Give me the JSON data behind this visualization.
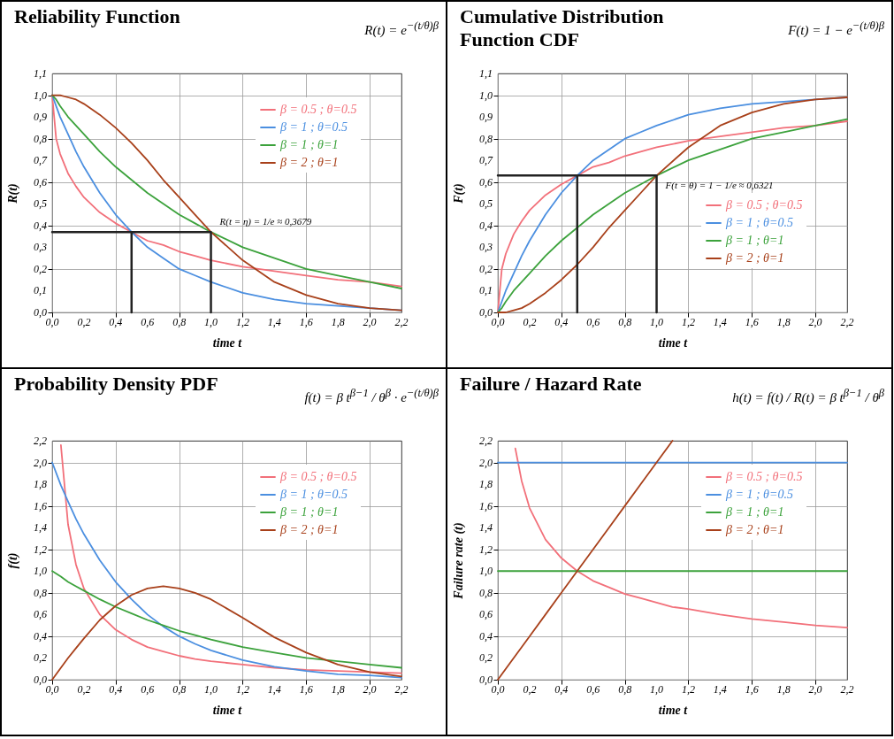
{
  "chart_data": [
    {
      "type": "line",
      "title": "Reliability Function",
      "xlabel": "time t",
      "ylabel": "R(t)",
      "legend": "top right",
      "grid": true,
      "annotations": [
        "R(t) = e$^{−(t/θ)}$$^{β}$",
        {
          "text": "R(t = η) = 1/e ≈ 0,3679",
          "x": 1,
          "y": 0.37
        }
      ],
      "x": [
        0,
        0.025,
        0.05,
        0.1,
        0.15,
        0.2,
        0.3,
        0.4,
        0.5,
        0.6,
        0.7,
        0.8,
        0.9,
        1,
        1.2,
        1.4,
        1.6,
        1.8,
        2,
        2.2
      ],
      "xlim": [
        0,
        2.2
      ],
      "xticks": [
        {
          "value": 0,
          "label": "0,0"
        },
        {
          "value": 0.2,
          "label": "0,2"
        },
        {
          "value": 0.4,
          "label": "0,4"
        },
        {
          "value": 0.6,
          "label": "0,6"
        },
        {
          "value": 0.8,
          "label": "0,8"
        },
        {
          "value": 1,
          "label": "1,0"
        },
        {
          "value": 1.2,
          "label": "1,2"
        },
        {
          "value": 1.4,
          "label": "1,4"
        },
        {
          "value": 1.6,
          "label": "1,6"
        },
        {
          "value": 1.8,
          "label": "1,8"
        },
        {
          "value": 2,
          "label": "2,0"
        },
        {
          "value": 2.2,
          "label": "2,2"
        }
      ],
      "ylim": [
        0,
        1.1
      ],
      "yticks": [
        {
          "value": 0,
          "label": "0,0"
        },
        {
          "value": 0.1,
          "label": "0,1"
        },
        {
          "value": 0.2,
          "label": "0,2"
        },
        {
          "value": 0.3,
          "label": "0,3"
        },
        {
          "value": 0.4,
          "label": "0,4"
        },
        {
          "value": 0.5,
          "label": "0,5"
        },
        {
          "value": 0.6,
          "label": "0,6"
        },
        {
          "value": 0.7,
          "label": "0,7"
        },
        {
          "value": 0.8,
          "label": "0,8"
        },
        {
          "value": 0.9,
          "label": "0,9"
        },
        {
          "value": 1,
          "label": "1,0"
        },
        {
          "value": 1.1,
          "label": "1,1"
        }
      ],
      "series": [
        {
          "name": "β = 0.5 ; θ=0.5",
          "color": "#f2707a",
          "values": [
            1,
            0.8,
            0.73,
            0.64,
            0.58,
            0.53,
            0.46,
            0.41,
            0.37,
            0.33,
            0.31,
            0.28,
            0.26,
            0.24,
            0.21,
            0.19,
            0.17,
            0.15,
            0.14,
            0.12
          ]
        },
        {
          "name": "β = 1 ; θ=0.5",
          "color": "#4b8fe0",
          "values": [
            1,
            0.95,
            0.9,
            0.82,
            0.74,
            0.67,
            0.55,
            0.45,
            0.37,
            0.3,
            0.25,
            0.2,
            0.17,
            0.14,
            0.09,
            0.06,
            0.04,
            0.03,
            0.02,
            0.01
          ]
        },
        {
          "name": "β = 1 ; θ=1",
          "color": "#3ca23c",
          "values": [
            1,
            0.98,
            0.95,
            0.9,
            0.86,
            0.82,
            0.74,
            0.67,
            0.61,
            0.55,
            0.5,
            0.45,
            0.41,
            0.37,
            0.3,
            0.25,
            0.2,
            0.17,
            0.14,
            0.11
          ]
        },
        {
          "name": "β = 2 ; θ=1",
          "color": "#a8401a",
          "values": [
            1,
            1.0,
            1.0,
            0.99,
            0.98,
            0.96,
            0.91,
            0.85,
            0.78,
            0.7,
            0.61,
            0.53,
            0.45,
            0.37,
            0.24,
            0.14,
            0.08,
            0.04,
            0.02,
            0.01
          ]
        },
        {
          "color": "#222222",
          "x": [
            0,
            1,
            1
          ],
          "values": [
            0.37,
            0.37,
            0
          ]
        },
        {
          "color": "#222222",
          "x": [
            0.5,
            0.5
          ],
          "values": [
            0,
            0.37
          ]
        }
      ]
    },
    {
      "type": "line",
      "title": "Cumulative Distribution Function CDF",
      "xlabel": "time t",
      "ylabel": "F(t)",
      "legend": "right",
      "grid": true,
      "annotations": [
        "F(t) = 1 − e$^{−(t/θ)}$$^{β}$",
        {
          "text": "F(t = θ) = 1 − 1/e ≈ 0,6321",
          "x": 1,
          "y": 0.63
        }
      ],
      "x": [
        0,
        0.025,
        0.05,
        0.1,
        0.15,
        0.2,
        0.3,
        0.4,
        0.5,
        0.6,
        0.7,
        0.8,
        0.9,
        1,
        1.2,
        1.4,
        1.6,
        1.8,
        2,
        2.2
      ],
      "xlim": [
        0,
        2.2
      ],
      "xticks": [
        {
          "value": 0,
          "label": "0,0"
        },
        {
          "value": 0.2,
          "label": "0,2"
        },
        {
          "value": 0.4,
          "label": "0,4"
        },
        {
          "value": 0.6,
          "label": "0,6"
        },
        {
          "value": 0.8,
          "label": "0,8"
        },
        {
          "value": 1,
          "label": "1,0"
        },
        {
          "value": 1.2,
          "label": "1,2"
        },
        {
          "value": 1.4,
          "label": "1,4"
        },
        {
          "value": 1.6,
          "label": "1,6"
        },
        {
          "value": 1.8,
          "label": "1,8"
        },
        {
          "value": 2,
          "label": "2,0"
        },
        {
          "value": 2.2,
          "label": "2,2"
        }
      ],
      "ylim": [
        0,
        1.1
      ],
      "yticks": [
        {
          "value": 0,
          "label": "0,0"
        },
        {
          "value": 0.1,
          "label": "0,1"
        },
        {
          "value": 0.2,
          "label": "0,2"
        },
        {
          "value": 0.3,
          "label": "0,3"
        },
        {
          "value": 0.4,
          "label": "0,4"
        },
        {
          "value": 0.5,
          "label": "0,5"
        },
        {
          "value": 0.6,
          "label": "0,6"
        },
        {
          "value": 0.7,
          "label": "0,7"
        },
        {
          "value": 0.8,
          "label": "0,8"
        },
        {
          "value": 0.9,
          "label": "0,9"
        },
        {
          "value": 1,
          "label": "1,0"
        },
        {
          "value": 1.1,
          "label": "1,1"
        }
      ],
      "series": [
        {
          "name": "β = 0.5 ; θ=0.5",
          "color": "#f2707a",
          "values": [
            0,
            0.2,
            0.27,
            0.36,
            0.42,
            0.47,
            0.54,
            0.59,
            0.63,
            0.67,
            0.69,
            0.72,
            0.74,
            0.76,
            0.79,
            0.81,
            0.83,
            0.85,
            0.86,
            0.88
          ]
        },
        {
          "name": "β = 1 ; θ=0.5",
          "color": "#4b8fe0",
          "values": [
            0,
            0.05,
            0.1,
            0.18,
            0.26,
            0.33,
            0.45,
            0.55,
            0.63,
            0.7,
            0.75,
            0.8,
            0.83,
            0.86,
            0.91,
            0.94,
            0.96,
            0.97,
            0.98,
            0.99
          ]
        },
        {
          "name": "β = 1 ; θ=1",
          "color": "#3ca23c",
          "values": [
            0,
            0.02,
            0.05,
            0.1,
            0.14,
            0.18,
            0.26,
            0.33,
            0.39,
            0.45,
            0.5,
            0.55,
            0.59,
            0.63,
            0.7,
            0.75,
            0.8,
            0.83,
            0.86,
            0.89
          ]
        },
        {
          "name": "β = 2 ; θ=1",
          "color": "#a8401a",
          "values": [
            0,
            0,
            0,
            0.01,
            0.02,
            0.04,
            0.09,
            0.15,
            0.22,
            0.3,
            0.39,
            0.47,
            0.55,
            0.63,
            0.76,
            0.86,
            0.92,
            0.96,
            0.98,
            0.99
          ]
        },
        {
          "color": "#222222",
          "x": [
            0,
            1,
            1
          ],
          "values": [
            0.63,
            0.63,
            0
          ]
        },
        {
          "color": "#222222",
          "x": [
            0.5,
            0.5
          ],
          "values": [
            0,
            0.63
          ]
        }
      ]
    },
    {
      "type": "line",
      "title": "Probability Density PDF",
      "xlabel": "time t",
      "ylabel": "f(t)",
      "legend": "top right",
      "grid": true,
      "annotations": [
        "f(t) = β t$^{β−1}$ / θ$^{β}$ · e$^{−(t/θ)}$$^{β}$"
      ],
      "x": [
        0,
        0.055,
        0.1,
        0.15,
        0.2,
        0.3,
        0.4,
        0.5,
        0.6,
        0.7,
        0.8,
        0.9,
        1,
        1.2,
        1.4,
        1.6,
        1.8,
        2,
        2.2
      ],
      "xlim": [
        0,
        2.2
      ],
      "xticks": [
        {
          "value": 0,
          "label": "0,0"
        },
        {
          "value": 0.2,
          "label": "0,2"
        },
        {
          "value": 0.4,
          "label": "0,4"
        },
        {
          "value": 0.6,
          "label": "0,6"
        },
        {
          "value": 0.8,
          "label": "0,8"
        },
        {
          "value": 1,
          "label": "1,0"
        },
        {
          "value": 1.2,
          "label": "1,2"
        },
        {
          "value": 1.4,
          "label": "1,4"
        },
        {
          "value": 1.6,
          "label": "1,6"
        },
        {
          "value": 1.8,
          "label": "1,8"
        },
        {
          "value": 2,
          "label": "2,0"
        },
        {
          "value": 2.2,
          "label": "2,2"
        }
      ],
      "ylim": [
        0,
        2.2
      ],
      "yticks": [
        {
          "value": 0,
          "label": "0,0"
        },
        {
          "value": 0.2,
          "label": "0,2"
        },
        {
          "value": 0.4,
          "label": "0,4"
        },
        {
          "value": 0.6,
          "label": "0,6"
        },
        {
          "value": 0.8,
          "label": "0,8"
        },
        {
          "value": 1,
          "label": "1,0"
        },
        {
          "value": 1.2,
          "label": "1,2"
        },
        {
          "value": 1.4,
          "label": "1,4"
        },
        {
          "value": 1.6,
          "label": "1,6"
        },
        {
          "value": 1.8,
          "label": "1,8"
        },
        {
          "value": 2,
          "label": "2,0"
        },
        {
          "value": 2.2,
          "label": "2,2"
        }
      ],
      "series": [
        {
          "name": "β = 0.5 ; θ=0.5",
          "color": "#f2707a",
          "values": [
            null,
            2.16,
            1.43,
            1.06,
            0.84,
            0.6,
            0.46,
            0.37,
            0.3,
            0.26,
            0.22,
            0.19,
            0.17,
            0.14,
            0.11,
            0.09,
            0.08,
            0.07,
            0.06
          ]
        },
        {
          "name": "β = 1 ; θ=0.5",
          "color": "#4b8fe0",
          "values": [
            2,
            1.79,
            1.64,
            1.48,
            1.34,
            1.1,
            0.9,
            0.74,
            0.6,
            0.49,
            0.4,
            0.33,
            0.27,
            0.18,
            0.12,
            0.08,
            0.05,
            0.04,
            0.02
          ]
        },
        {
          "name": "β = 1 ; θ=1",
          "color": "#3ca23c",
          "values": [
            1,
            0.95,
            0.9,
            0.86,
            0.82,
            0.74,
            0.67,
            0.61,
            0.55,
            0.5,
            0.45,
            0.41,
            0.37,
            0.3,
            0.25,
            0.2,
            0.17,
            0.14,
            0.11
          ]
        },
        {
          "name": "β = 2 ; θ=1",
          "color": "#a8401a",
          "values": [
            0,
            0.11,
            0.2,
            0.29,
            0.38,
            0.55,
            0.68,
            0.78,
            0.84,
            0.86,
            0.84,
            0.8,
            0.74,
            0.57,
            0.39,
            0.25,
            0.14,
            0.07,
            0.03
          ]
        }
      ]
    },
    {
      "type": "line",
      "title": "Failure / Hazard Rate",
      "xlabel": "time t",
      "ylabel": "Failure rate (t)",
      "legend": "top right",
      "grid": true,
      "annotations": [
        "h(t) = f(t) / R(t) = β t$^{β−1}$ / θ$^{β}$"
      ],
      "x": [
        0,
        0.11,
        0.15,
        0.2,
        0.3,
        0.4,
        0.5,
        0.6,
        0.7,
        0.8,
        0.9,
        1,
        1.1,
        1.2,
        1.4,
        1.6,
        1.8,
        2,
        2.2
      ],
      "xlim": [
        0,
        2.2
      ],
      "xticks": [
        {
          "value": 0,
          "label": "0,0"
        },
        {
          "value": 0.2,
          "label": "0,2"
        },
        {
          "value": 0.4,
          "label": "0,4"
        },
        {
          "value": 0.6,
          "label": "0,6"
        },
        {
          "value": 0.8,
          "label": "0,8"
        },
        {
          "value": 1,
          "label": "1,0"
        },
        {
          "value": 1.2,
          "label": "1,2"
        },
        {
          "value": 1.4,
          "label": "1,4"
        },
        {
          "value": 1.6,
          "label": "1,6"
        },
        {
          "value": 1.8,
          "label": "1,8"
        },
        {
          "value": 2,
          "label": "2,0"
        },
        {
          "value": 2.2,
          "label": "2,2"
        }
      ],
      "ylim": [
        0,
        2.2
      ],
      "yticks": [
        {
          "value": 0,
          "label": "0,0"
        },
        {
          "value": 0.2,
          "label": "0,2"
        },
        {
          "value": 0.4,
          "label": "0,4"
        },
        {
          "value": 0.6,
          "label": "0,6"
        },
        {
          "value": 0.8,
          "label": "0,8"
        },
        {
          "value": 1,
          "label": "1,0"
        },
        {
          "value": 1.2,
          "label": "1,2"
        },
        {
          "value": 1.4,
          "label": "1,4"
        },
        {
          "value": 1.6,
          "label": "1,6"
        },
        {
          "value": 1.8,
          "label": "1,8"
        },
        {
          "value": 2,
          "label": "2,0"
        },
        {
          "value": 2.2,
          "label": "2,2"
        }
      ],
      "series": [
        {
          "name": "β = 0.5 ; θ=0.5",
          "color": "#f2707a",
          "values": [
            null,
            2.13,
            1.83,
            1.58,
            1.29,
            1.12,
            1.0,
            0.91,
            0.85,
            0.79,
            0.75,
            0.71,
            0.67,
            0.65,
            0.6,
            0.56,
            0.53,
            0.5,
            0.48
          ]
        },
        {
          "name": "β = 1 ; θ=0.5",
          "color": "#4b8fe0",
          "values": [
            2,
            2,
            2,
            2,
            2,
            2,
            2,
            2,
            2,
            2,
            2,
            2,
            2,
            2,
            2,
            2,
            2,
            2,
            2
          ]
        },
        {
          "name": "β = 1 ; θ=1",
          "color": "#3ca23c",
          "values": [
            1,
            1,
            1,
            1,
            1,
            1,
            1,
            1,
            1,
            1,
            1,
            1,
            1,
            1,
            1,
            1,
            1,
            1,
            1
          ]
        },
        {
          "name": "β = 2 ; θ=1",
          "color": "#a8401a",
          "values": [
            0,
            0.22,
            0.3,
            0.4,
            0.6,
            0.8,
            1.0,
            1.2,
            1.4,
            1.6,
            1.8,
            2.0,
            2.2,
            null,
            null,
            null,
            null,
            null,
            null
          ]
        }
      ]
    }
  ]
}
